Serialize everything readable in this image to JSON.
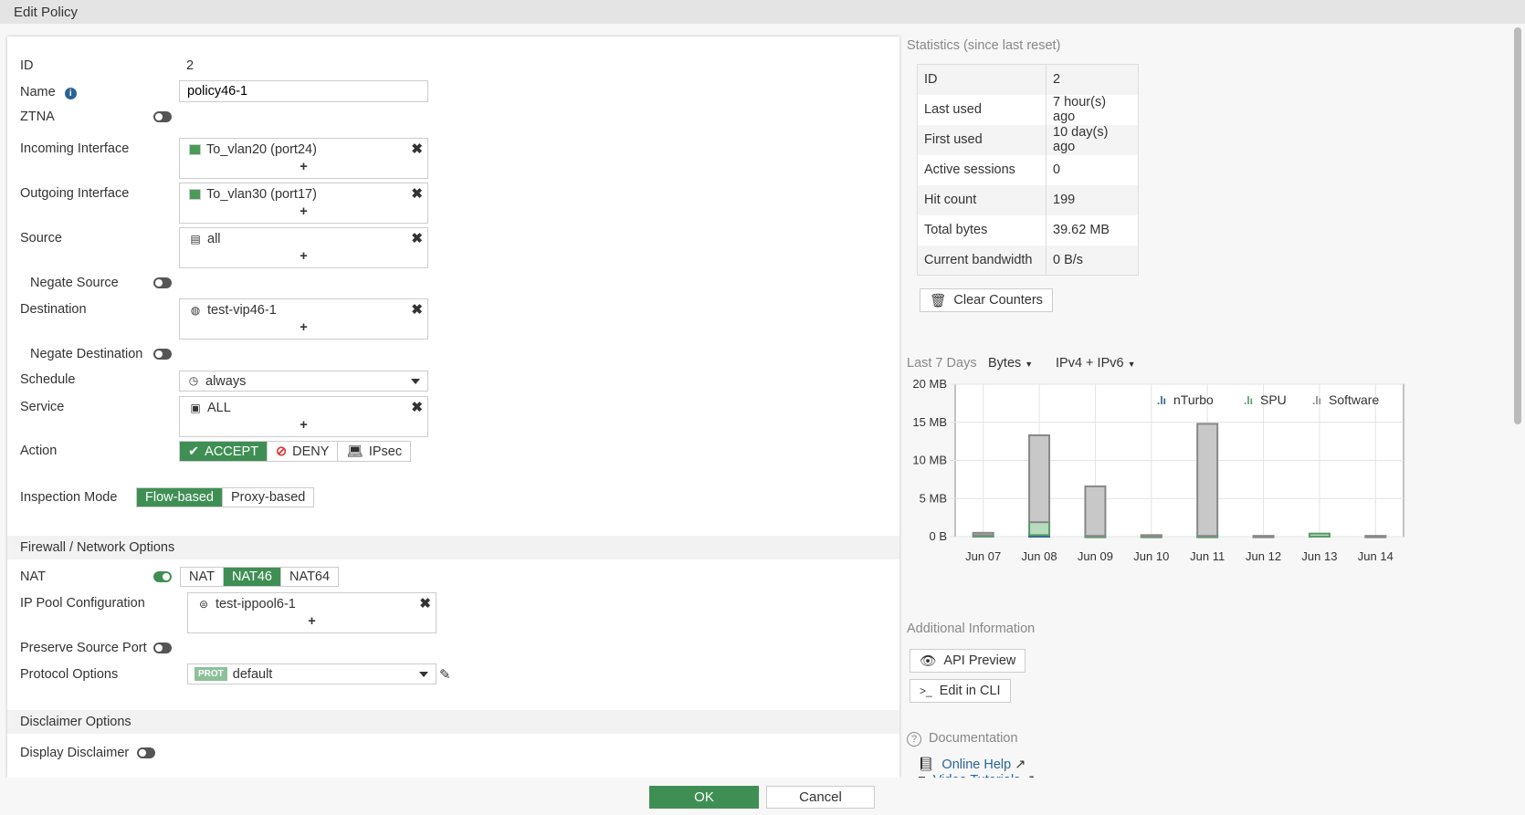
{
  "title": "Edit Policy",
  "form": {
    "id_label": "ID",
    "id_value": "2",
    "name_label": "Name",
    "name_value": "policy46-1",
    "ztna_label": "ZTNA",
    "incoming_label": "Incoming Interface",
    "incoming_value": "To_vlan20 (port24)",
    "outgoing_label": "Outgoing Interface",
    "outgoing_value": "To_vlan30 (port17)",
    "source_label": "Source",
    "source_value": "all",
    "negate_source_label": "Negate Source",
    "destination_label": "Destination",
    "destination_value": "test-vip46-1",
    "negate_destination_label": "Negate Destination",
    "schedule_label": "Schedule",
    "schedule_value": "always",
    "service_label": "Service",
    "service_value": "ALL",
    "action_label": "Action",
    "actions": [
      "ACCEPT",
      "DENY",
      "IPsec"
    ],
    "action_selected": "ACCEPT",
    "inspection_label": "Inspection Mode",
    "inspection_modes": [
      "Flow-based",
      "Proxy-based"
    ],
    "inspection_selected": "Flow-based",
    "firewall_section": "Firewall / Network Options",
    "nat_label": "NAT",
    "nat_options": [
      "NAT",
      "NAT46",
      "NAT64"
    ],
    "nat_selected": "NAT46",
    "nat_enabled": true,
    "ippool_label": "IP Pool Configuration",
    "ippool_value": "test-ippool6-1",
    "preserve_label": "Preserve Source Port",
    "protocol_label": "Protocol Options",
    "protocol_badge": "PROT",
    "protocol_value": "default",
    "disclaimer_section": "Disclaimer Options",
    "display_disclaimer_label": "Display Disclaimer",
    "plus": "+",
    "remove": "✖"
  },
  "footer": {
    "ok": "OK",
    "cancel": "Cancel"
  },
  "stats": {
    "title": "Statistics (since last reset)",
    "rows": [
      [
        "ID",
        "2"
      ],
      [
        "Last used",
        "7 hour(s) ago"
      ],
      [
        "First used",
        "10 day(s) ago"
      ],
      [
        "Active sessions",
        "0"
      ],
      [
        "Hit count",
        "199"
      ],
      [
        "Total bytes",
        "39.62 MB"
      ],
      [
        "Current bandwidth",
        "0 B/s"
      ]
    ],
    "clear_counters": "Clear Counters"
  },
  "chart_controls": {
    "period": "Last 7 Days",
    "metric": "Bytes",
    "ip_version": "IPv4 + IPv6"
  },
  "chart_data": {
    "type": "bar",
    "stacked": true,
    "categories": [
      "Jun 07",
      "Jun 08",
      "Jun 09",
      "Jun 10",
      "Jun 11",
      "Jun 12",
      "Jun 13",
      "Jun 14"
    ],
    "series": [
      {
        "name": "nTurbo",
        "color": "#2a6496",
        "values": [
          0,
          0.2,
          0,
          0,
          0,
          0,
          0,
          0
        ]
      },
      {
        "name": "SPU",
        "color": "#5a9a6a",
        "values": [
          0.2,
          1.7,
          0.1,
          0.1,
          0.1,
          0,
          0.4,
          0
        ]
      },
      {
        "name": "Software",
        "color": "#888888",
        "values": [
          0.3,
          11.4,
          6.5,
          0.1,
          14.7,
          0.1,
          0,
          0.1
        ]
      }
    ],
    "yticks": [
      "0 B",
      "5 MB",
      "10 MB",
      "15 MB",
      "20 MB"
    ],
    "ylim": [
      0,
      20
    ],
    "yunit": "MB",
    "grid": true,
    "legend": "top-right"
  },
  "additional": {
    "title": "Additional Information",
    "api_preview": "API Preview",
    "edit_cli": "Edit in CLI"
  },
  "docs": {
    "title": "Documentation",
    "online_help": "Online Help",
    "video_tutorials": "Video Tutorials"
  }
}
